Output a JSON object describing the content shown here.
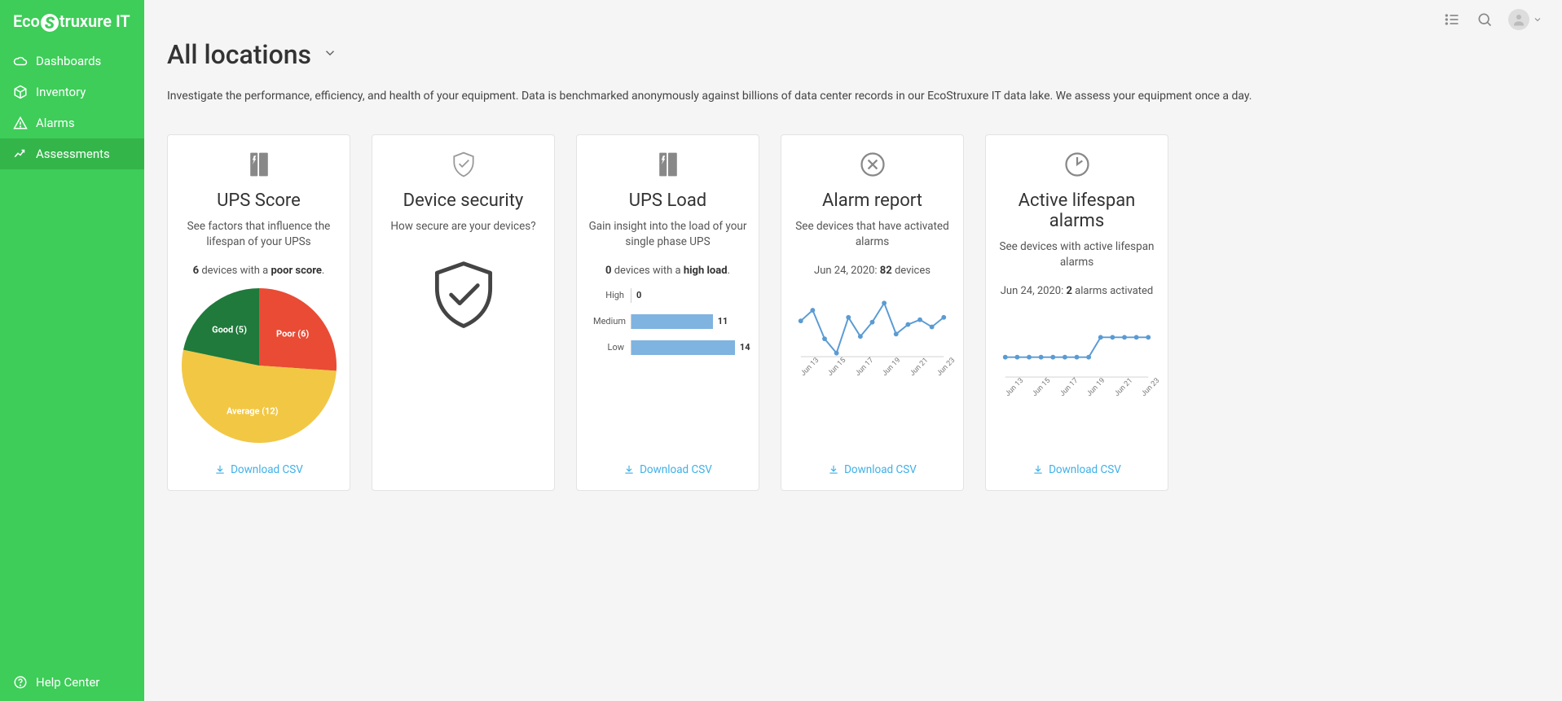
{
  "brand": {
    "prefix": "Eco",
    "mid": "S",
    "suffix": "truxure IT"
  },
  "nav": {
    "items": [
      {
        "key": "dashboards",
        "label": "Dashboards",
        "active": false
      },
      {
        "key": "inventory",
        "label": "Inventory",
        "active": false
      },
      {
        "key": "alarms",
        "label": "Alarms",
        "active": false
      },
      {
        "key": "assessments",
        "label": "Assessments",
        "active": true
      }
    ],
    "help": "Help Center"
  },
  "page": {
    "title": "All locations",
    "subtitle": "Investigate the performance, efficiency, and health of your equipment. Data is benchmarked anonymously against billions of data center records in our EcoStruxure IT data lake. We assess your equipment once a day."
  },
  "colors": {
    "sidebar": "#3dcd58",
    "sidebar_active": "#33b54a",
    "link": "#3fb0e8",
    "bar_fill": "#7fb3e0",
    "line_stroke": "#5a9bd4",
    "pie_poor": "#e94b35",
    "pie_good": "#1f7a3b",
    "pie_average": "#f2c744"
  },
  "cards": {
    "ups_score": {
      "title": "UPS Score",
      "desc": "See factors that influence the lifespan of your UPSs",
      "stat_prefix": "",
      "stat_bold1": "6",
      "stat_mid": " devices with a ",
      "stat_bold2": "poor score",
      "stat_suffix": ".",
      "download": "Download CSV",
      "pie": {
        "type": "pie",
        "slices": [
          {
            "label": "Poor (6)",
            "value": 6,
            "color": "#e94b35"
          },
          {
            "label": "Average (12)",
            "value": 12,
            "color": "#f2c744"
          },
          {
            "label": "Good (5)",
            "value": 5,
            "color": "#1f7a3b"
          }
        ]
      }
    },
    "device_security": {
      "title": "Device security",
      "desc": "How secure are your devices?"
    },
    "ups_load": {
      "title": "UPS Load",
      "desc": "Gain insight into the load of your single phase UPS",
      "stat_bold1": "0",
      "stat_mid": " devices with a ",
      "stat_bold2": "high load",
      "stat_suffix": ".",
      "download": "Download CSV",
      "bars": {
        "type": "bar",
        "max": 15,
        "rows": [
          {
            "label": "High",
            "value": 0
          },
          {
            "label": "Medium",
            "value": 11
          },
          {
            "label": "Low",
            "value": 14
          }
        ],
        "bar_color": "#7fb3e0"
      }
    },
    "alarm_report": {
      "title": "Alarm report",
      "desc": "See devices that have activated alarms",
      "stat_prefix": "Jun 24, 2020: ",
      "stat_bold1": "82",
      "stat_suffix": " devices",
      "download": "Download CSV",
      "line": {
        "type": "line",
        "x_labels": [
          "Jun 13",
          "Jun 15",
          "Jun 17",
          "Jun 19",
          "Jun 21",
          "Jun 23"
        ],
        "ylim": [
          45,
          95
        ],
        "points": [
          {
            "x": 0,
            "y": 75
          },
          {
            "x": 1,
            "y": 84
          },
          {
            "x": 2,
            "y": 60
          },
          {
            "x": 3,
            "y": 48
          },
          {
            "x": 4,
            "y": 78
          },
          {
            "x": 5,
            "y": 62
          },
          {
            "x": 6,
            "y": 74
          },
          {
            "x": 7,
            "y": 90
          },
          {
            "x": 8,
            "y": 64
          },
          {
            "x": 9,
            "y": 72
          },
          {
            "x": 10,
            "y": 76
          },
          {
            "x": 11,
            "y": 70
          },
          {
            "x": 12,
            "y": 78
          }
        ],
        "stroke": "#5a9bd4"
      }
    },
    "lifespan_alarms": {
      "title": "Active lifespan alarms",
      "desc": "See devices with active lifespan alarms",
      "stat_prefix": "Jun 24, 2020: ",
      "stat_bold1": "2",
      "stat_suffix": " alarms activated",
      "download": "Download CSV",
      "line": {
        "type": "line",
        "x_labels": [
          "Jun 13",
          "Jun 15",
          "Jun 17",
          "Jun 19",
          "Jun 21",
          "Jun 23"
        ],
        "ylim": [
          0,
          3
        ],
        "points": [
          {
            "x": 0,
            "y": 1
          },
          {
            "x": 1,
            "y": 1
          },
          {
            "x": 2,
            "y": 1
          },
          {
            "x": 3,
            "y": 1
          },
          {
            "x": 4,
            "y": 1
          },
          {
            "x": 5,
            "y": 1
          },
          {
            "x": 6,
            "y": 1
          },
          {
            "x": 7,
            "y": 1
          },
          {
            "x": 8,
            "y": 2
          },
          {
            "x": 9,
            "y": 2
          },
          {
            "x": 10,
            "y": 2
          },
          {
            "x": 11,
            "y": 2
          },
          {
            "x": 12,
            "y": 2
          }
        ],
        "stroke": "#5a9bd4"
      }
    }
  }
}
